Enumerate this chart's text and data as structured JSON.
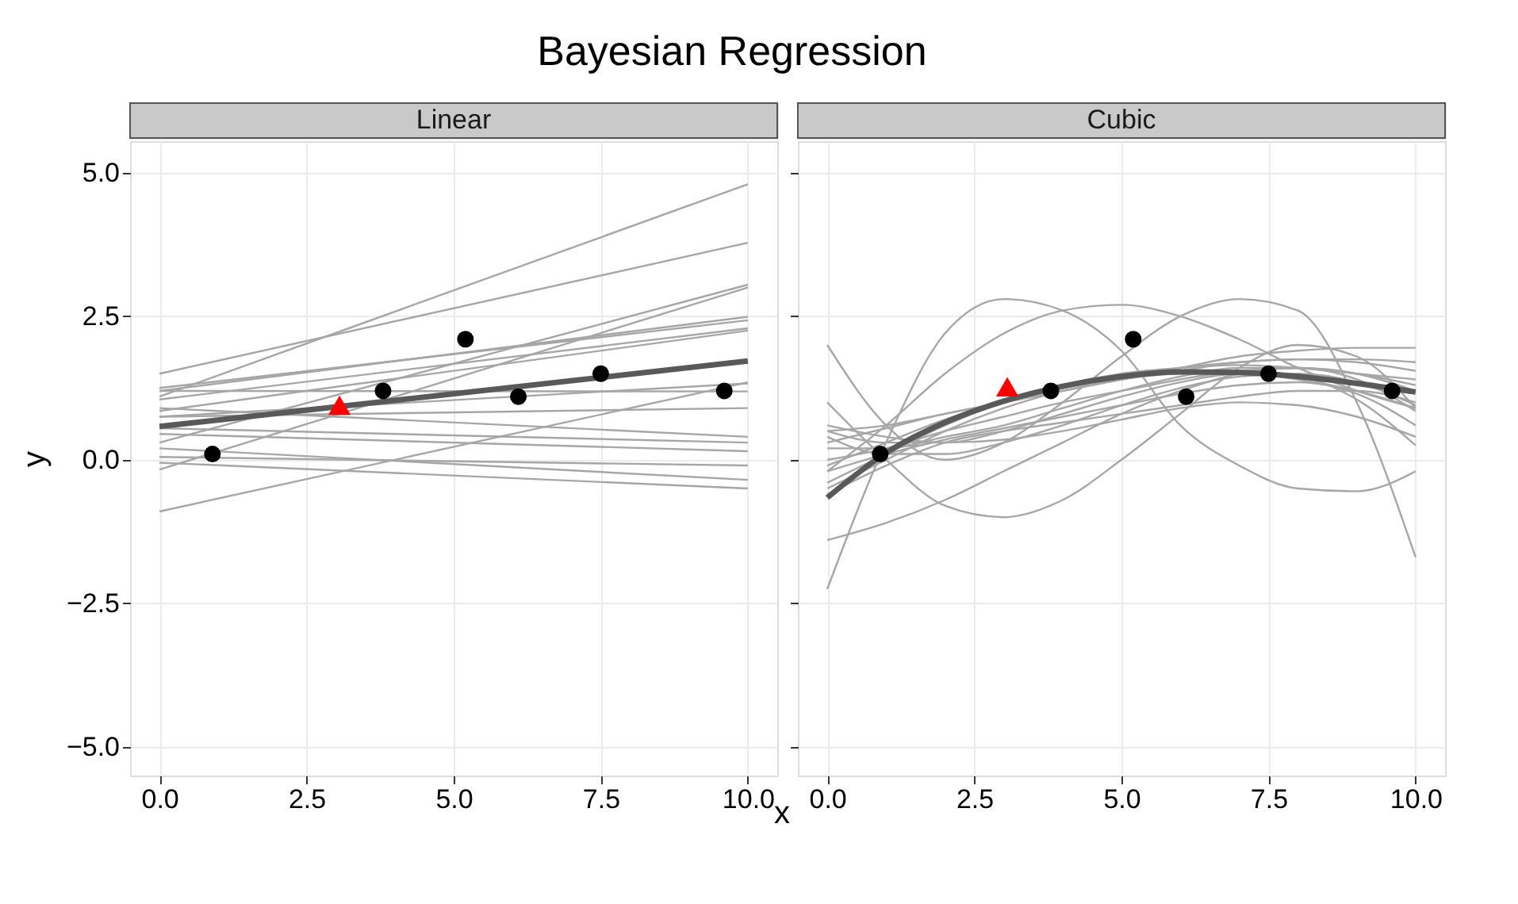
{
  "chart_data": [
    {
      "type": "line",
      "title": "Linear",
      "annotations": [
        "Bayesian Regression"
      ],
      "xlabel": "x",
      "ylabel": "y",
      "xlim": [
        -0.5,
        10.5
      ],
      "ylim": [
        -5.5,
        5.55
      ],
      "xticks": [
        {
          "value": 0,
          "label": "0.0"
        },
        {
          "value": 2.5,
          "label": "2.5"
        },
        {
          "value": 5,
          "label": "5.0"
        },
        {
          "value": 7.5,
          "label": "7.5"
        },
        {
          "value": 10,
          "label": "10.0"
        }
      ],
      "yticks": [
        {
          "value": -5,
          "label": "−5.0"
        },
        {
          "value": -2.5,
          "label": "−2.5"
        },
        {
          "value": 0,
          "label": "0.0"
        },
        {
          "value": 2.5,
          "label": "2.5"
        },
        {
          "value": 5,
          "label": "5.0"
        }
      ],
      "grid": true,
      "series": [
        {
          "color": "#a6a6a6",
          "x": [
            0,
            10
          ],
          "values": [
            1.1,
            4.8
          ]
        },
        {
          "color": "#a6a6a6",
          "x": [
            0,
            10
          ],
          "values": [
            1.5,
            3.78
          ]
        },
        {
          "color": "#a6a6a6",
          "x": [
            0,
            10
          ],
          "values": [
            0.3,
            3.05
          ]
        },
        {
          "color": "#a6a6a6",
          "x": [
            0,
            10
          ],
          "values": [
            -0.17,
            3.0
          ]
        },
        {
          "color": "#a6a6a6",
          "x": [
            0,
            10
          ],
          "values": [
            1.2,
            2.49
          ]
        },
        {
          "color": "#a6a6a6",
          "x": [
            0,
            10
          ],
          "values": [
            1.25,
            2.43
          ]
        },
        {
          "color": "#a6a6a6",
          "x": [
            0,
            10
          ],
          "values": [
            1.05,
            2.29
          ]
        },
        {
          "color": "#a6a6a6",
          "x": [
            0,
            10
          ],
          "values": [
            0.85,
            2.25
          ]
        },
        {
          "color": "#a6a6a6",
          "x": [
            0,
            10
          ],
          "values": [
            0.75,
            1.33
          ]
        },
        {
          "color": "#a6a6a6",
          "x": [
            0,
            10
          ],
          "values": [
            1.2,
            1.19
          ]
        },
        {
          "color": "#a6a6a6",
          "x": [
            0,
            10
          ],
          "values": [
            -0.9,
            1.35
          ]
        },
        {
          "color": "#a6a6a6",
          "x": [
            0,
            10
          ],
          "values": [
            0.75,
            0.9
          ]
        },
        {
          "color": "#a6a6a6",
          "x": [
            0,
            10
          ],
          "values": [
            0.9,
            0.4
          ]
        },
        {
          "color": "#a6a6a6",
          "x": [
            0,
            10
          ],
          "values": [
            0.55,
            0.3
          ]
        },
        {
          "color": "#a6a6a6",
          "x": [
            0,
            10
          ],
          "values": [
            0.45,
            0.15
          ]
        },
        {
          "color": "#a6a6a6",
          "x": [
            0,
            10
          ],
          "values": [
            0.05,
            -0.1
          ]
        },
        {
          "color": "#a6a6a6",
          "x": [
            0,
            10
          ],
          "values": [
            0.2,
            -0.35
          ]
        },
        {
          "color": "#a6a6a6",
          "x": [
            0,
            10
          ],
          "values": [
            -0.05,
            -0.5
          ]
        },
        {
          "color": "#595959",
          "x": [
            0,
            10
          ],
          "values": [
            0.58,
            1.72
          ]
        },
        {
          "type": "scatter",
          "marker": "circle",
          "color": "#000000",
          "x": [
            0.9,
            3.8,
            5.2,
            6.1,
            7.5,
            9.6
          ],
          "values": [
            0.1,
            1.2,
            2.1,
            1.1,
            1.5,
            1.2
          ]
        },
        {
          "type": "scatter",
          "marker": "triangle",
          "color": "#ff0000",
          "x": [
            3.06
          ],
          "values": [
            0.95
          ]
        }
      ]
    },
    {
      "type": "line",
      "title": "Cubic",
      "xlim": [
        -0.5,
        10.5
      ],
      "ylim": [
        -5.5,
        5.55
      ],
      "xticks": [
        {
          "value": 0,
          "label": "0.0"
        },
        {
          "value": 2.5,
          "label": "2.5"
        },
        {
          "value": 5,
          "label": "5.0"
        },
        {
          "value": 7.5,
          "label": "7.5"
        },
        {
          "value": 10,
          "label": "10.0"
        }
      ],
      "yticks": [
        {
          "value": -5,
          "label": null
        },
        {
          "value": -2.5,
          "label": null
        },
        {
          "value": 0,
          "label": null
        },
        {
          "value": 2.5,
          "label": null
        },
        {
          "value": 5,
          "label": null
        }
      ],
      "tick_labels": "x",
      "grid": true,
      "series": [
        {
          "color": "#a6a6a6",
          "x": [
            0,
            1,
            2,
            3,
            4,
            5,
            6,
            7,
            8,
            9,
            10
          ],
          "values": [
            2.0,
            0.6,
            0.0,
            0.3,
            1.0,
            1.8,
            2.5,
            2.8,
            2.6,
            1.0,
            -1.7
          ]
        },
        {
          "color": "#a6a6a6",
          "x": [
            0,
            1,
            2,
            3,
            4,
            5,
            6,
            7,
            8,
            9,
            10
          ],
          "values": [
            -2.25,
            0.3,
            2.2,
            2.8,
            2.6,
            1.9,
            0.6,
            -0.1,
            -0.5,
            -0.55,
            -0.2
          ]
        },
        {
          "color": "#a6a6a6",
          "x": [
            0,
            1,
            2,
            3,
            4,
            5,
            6,
            7,
            8,
            9,
            10
          ],
          "values": [
            -0.2,
            0.6,
            1.5,
            2.2,
            2.6,
            2.7,
            2.5,
            2.1,
            1.6,
            1.2,
            0.9
          ]
        },
        {
          "color": "#a6a6a6",
          "x": [
            0,
            1,
            2,
            3,
            4,
            5,
            6,
            7,
            8,
            9,
            10
          ],
          "values": [
            1.0,
            0.0,
            -0.8,
            -1.0,
            -0.7,
            0.0,
            0.8,
            1.6,
            2.0,
            1.8,
            0.9
          ]
        },
        {
          "color": "#a6a6a6",
          "x": [
            0,
            1,
            2,
            3,
            4,
            5,
            6,
            7,
            8,
            9,
            10
          ],
          "values": [
            -1.4,
            -1.1,
            -0.7,
            -0.2,
            0.3,
            0.8,
            1.2,
            1.5,
            1.6,
            1.5,
            1.3
          ]
        },
        {
          "color": "#a6a6a6",
          "x": [
            0,
            1,
            2,
            3,
            4,
            5,
            6,
            7,
            8,
            9,
            10
          ],
          "values": [
            0.5,
            0.6,
            0.8,
            1.0,
            1.2,
            1.4,
            1.6,
            1.8,
            1.9,
            1.95,
            1.95
          ]
        },
        {
          "color": "#a6a6a6",
          "x": [
            0,
            1,
            2,
            3,
            4,
            5,
            6,
            7,
            8,
            9,
            10
          ],
          "values": [
            0.3,
            0.55,
            0.8,
            1.0,
            1.2,
            1.4,
            1.55,
            1.7,
            1.75,
            1.75,
            1.7
          ]
        },
        {
          "color": "#a6a6a6",
          "x": [
            0,
            1,
            2,
            3,
            4,
            5,
            6,
            7,
            8,
            9,
            10
          ],
          "values": [
            -0.1,
            0.3,
            0.7,
            1.0,
            1.25,
            1.45,
            1.6,
            1.7,
            1.75,
            1.7,
            1.55
          ]
        },
        {
          "color": "#a6a6a6",
          "x": [
            0,
            1,
            2,
            3,
            4,
            5,
            6,
            7,
            8,
            9,
            10
          ],
          "values": [
            -0.4,
            0.1,
            0.6,
            1.0,
            1.3,
            1.5,
            1.6,
            1.65,
            1.6,
            1.5,
            1.4
          ]
        },
        {
          "color": "#a6a6a6",
          "x": [
            0,
            1,
            2,
            3,
            4,
            5,
            6,
            7,
            8,
            9,
            10
          ],
          "values": [
            0.0,
            0.2,
            0.5,
            0.75,
            1.0,
            1.2,
            1.4,
            1.55,
            1.6,
            1.5,
            1.2
          ]
        },
        {
          "color": "#a6a6a6",
          "x": [
            0,
            1,
            2,
            3,
            4,
            5,
            6,
            7,
            8,
            9,
            10
          ],
          "values": [
            -0.5,
            0.0,
            0.5,
            0.9,
            1.2,
            1.4,
            1.5,
            1.5,
            1.4,
            1.2,
            0.9
          ]
        },
        {
          "color": "#a6a6a6",
          "x": [
            0,
            1,
            2,
            3,
            4,
            5,
            6,
            7,
            8,
            9,
            10
          ],
          "values": [
            0.2,
            0.2,
            0.4,
            0.6,
            0.9,
            1.2,
            1.45,
            1.6,
            1.6,
            1.4,
            0.85
          ]
        },
        {
          "color": "#a6a6a6",
          "x": [
            0,
            1,
            2,
            3,
            4,
            5,
            6,
            7,
            8,
            9,
            10
          ],
          "values": [
            -0.2,
            0.1,
            0.35,
            0.55,
            0.75,
            0.95,
            1.15,
            1.3,
            1.35,
            1.15,
            0.6
          ]
        },
        {
          "color": "#a6a6a6",
          "x": [
            0,
            1,
            2,
            3,
            4,
            5,
            6,
            7,
            8,
            9,
            10
          ],
          "values": [
            0.5,
            0.3,
            0.3,
            0.5,
            0.8,
            1.1,
            1.35,
            1.5,
            1.45,
            1.05,
            0.25
          ]
        },
        {
          "color": "#a6a6a6",
          "x": [
            0,
            1,
            2,
            3,
            4,
            5,
            6,
            7,
            8,
            9,
            10
          ],
          "values": [
            -0.6,
            -0.1,
            0.3,
            0.5,
            0.65,
            0.8,
            0.95,
            1.1,
            1.2,
            1.2,
            1.0
          ]
        },
        {
          "color": "#a6a6a6",
          "x": [
            0,
            1,
            2,
            3,
            4,
            5,
            6,
            7,
            8,
            9,
            10
          ],
          "values": [
            0.6,
            0.4,
            0.3,
            0.35,
            0.5,
            0.7,
            0.9,
            1.0,
            0.95,
            0.75,
            0.4
          ]
        },
        {
          "color": "#a6a6a6",
          "x": [
            0,
            1,
            2,
            3,
            4,
            5,
            6,
            7,
            8,
            9,
            10
          ],
          "values": [
            0.4,
            0.1,
            0.1,
            0.3,
            0.6,
            0.95,
            1.25,
            1.45,
            1.5,
            1.35,
            0.95
          ]
        },
        {
          "color": "#595959",
          "x": [
            0,
            1,
            2,
            3,
            4,
            5,
            6,
            7,
            8,
            9,
            10
          ],
          "values": [
            -0.66,
            0.12,
            0.65,
            1.02,
            1.28,
            1.45,
            1.53,
            1.52,
            1.45,
            1.33,
            1.18
          ]
        },
        {
          "type": "scatter",
          "marker": "circle",
          "color": "#000000",
          "x": [
            0.9,
            3.8,
            5.2,
            6.1,
            7.5,
            9.6
          ],
          "values": [
            0.1,
            1.2,
            2.1,
            1.1,
            1.5,
            1.2
          ]
        },
        {
          "type": "scatter",
          "marker": "triangle",
          "color": "#ff0000",
          "x": [
            3.06
          ],
          "values": [
            1.27
          ]
        }
      ]
    }
  ]
}
